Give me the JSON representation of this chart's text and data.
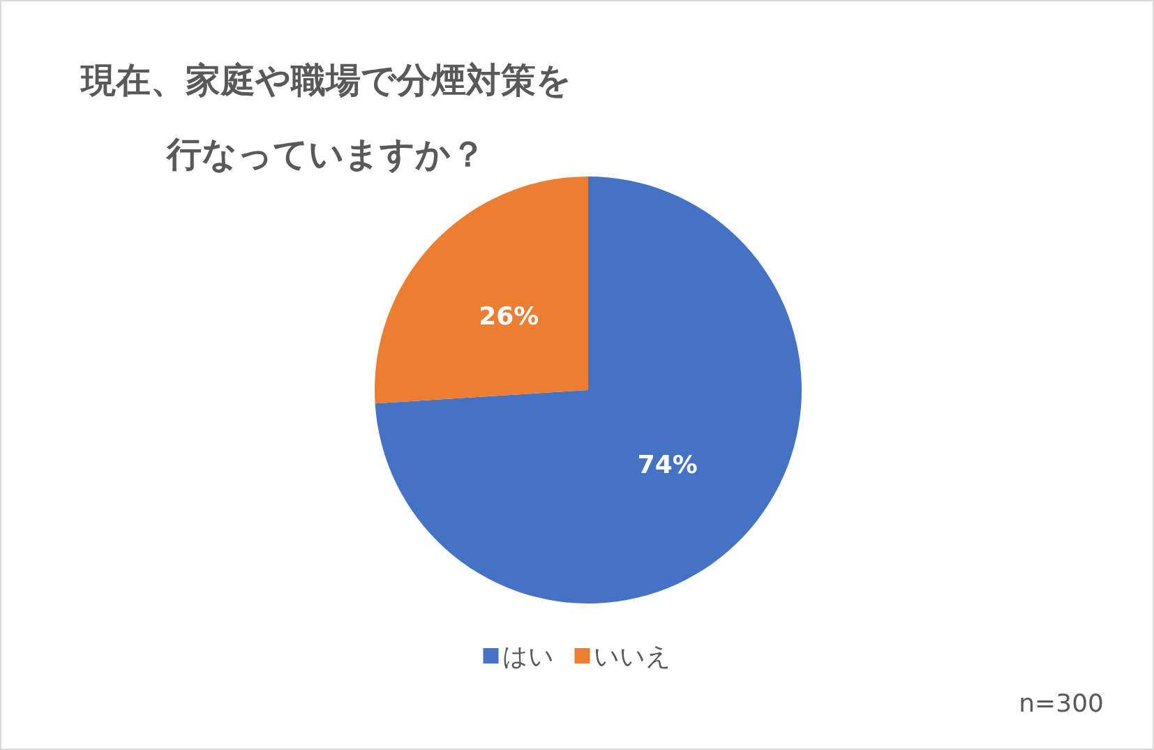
{
  "chart_data": {
    "type": "pie",
    "title": "現在、家庭や職場で分煙対策を行なっていますか？",
    "categories": [
      "はい",
      "いいえ"
    ],
    "values": [
      74,
      26
    ],
    "colors": [
      "#4472c4",
      "#ed7d31"
    ],
    "value_labels": [
      "74%",
      "26%"
    ],
    "legend": "bottom",
    "annotations": [
      "n=300"
    ]
  }
}
